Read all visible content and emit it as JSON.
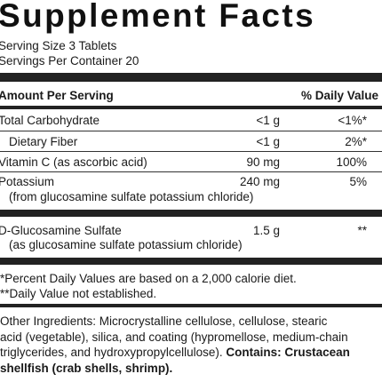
{
  "title": "Supplement Facts",
  "serving_size": "Serving Size 3 Tablets",
  "servings_per_container": "Servings Per Container 20",
  "header": {
    "amount": "Amount Per Serving",
    "dv": "% Daily Value"
  },
  "rows": [
    {
      "name": "Total Carbohydrate",
      "amount": "<1 g",
      "dv": "<1%*"
    },
    {
      "name": "Dietary Fiber",
      "amount": "<1 g",
      "dv": "2%*"
    },
    {
      "name": "Vitamin C (as ascorbic acid)",
      "amount": "90 mg",
      "dv": "100%"
    },
    {
      "name": "Potassium",
      "sub": "(from glucosamine sulfate potassium chloride)",
      "amount": "240 mg",
      "dv": "5%"
    },
    {
      "name": "D-Glucosamine Sulfate",
      "sub": "(as glucosamine sulfate potassium chloride)",
      "amount": "1.5 g",
      "dv": "**"
    }
  ],
  "footnotes": [
    "*Percent Daily Values are based on a 2,000 calorie diet.",
    "**Daily Value not established."
  ],
  "ingredients": {
    "line1": "Other Ingredients:  Microcrystalline cellulose, cellulose, stearic",
    "line2": "acid (vegetable), silica, and coating (hypromellose, medium-chain",
    "line3_a": "triglycerides, and hydroxypropylcellulose). ",
    "line3_b": "Contains: Crustacean",
    "line4": "shellfish (crab shells, shrimp)."
  }
}
